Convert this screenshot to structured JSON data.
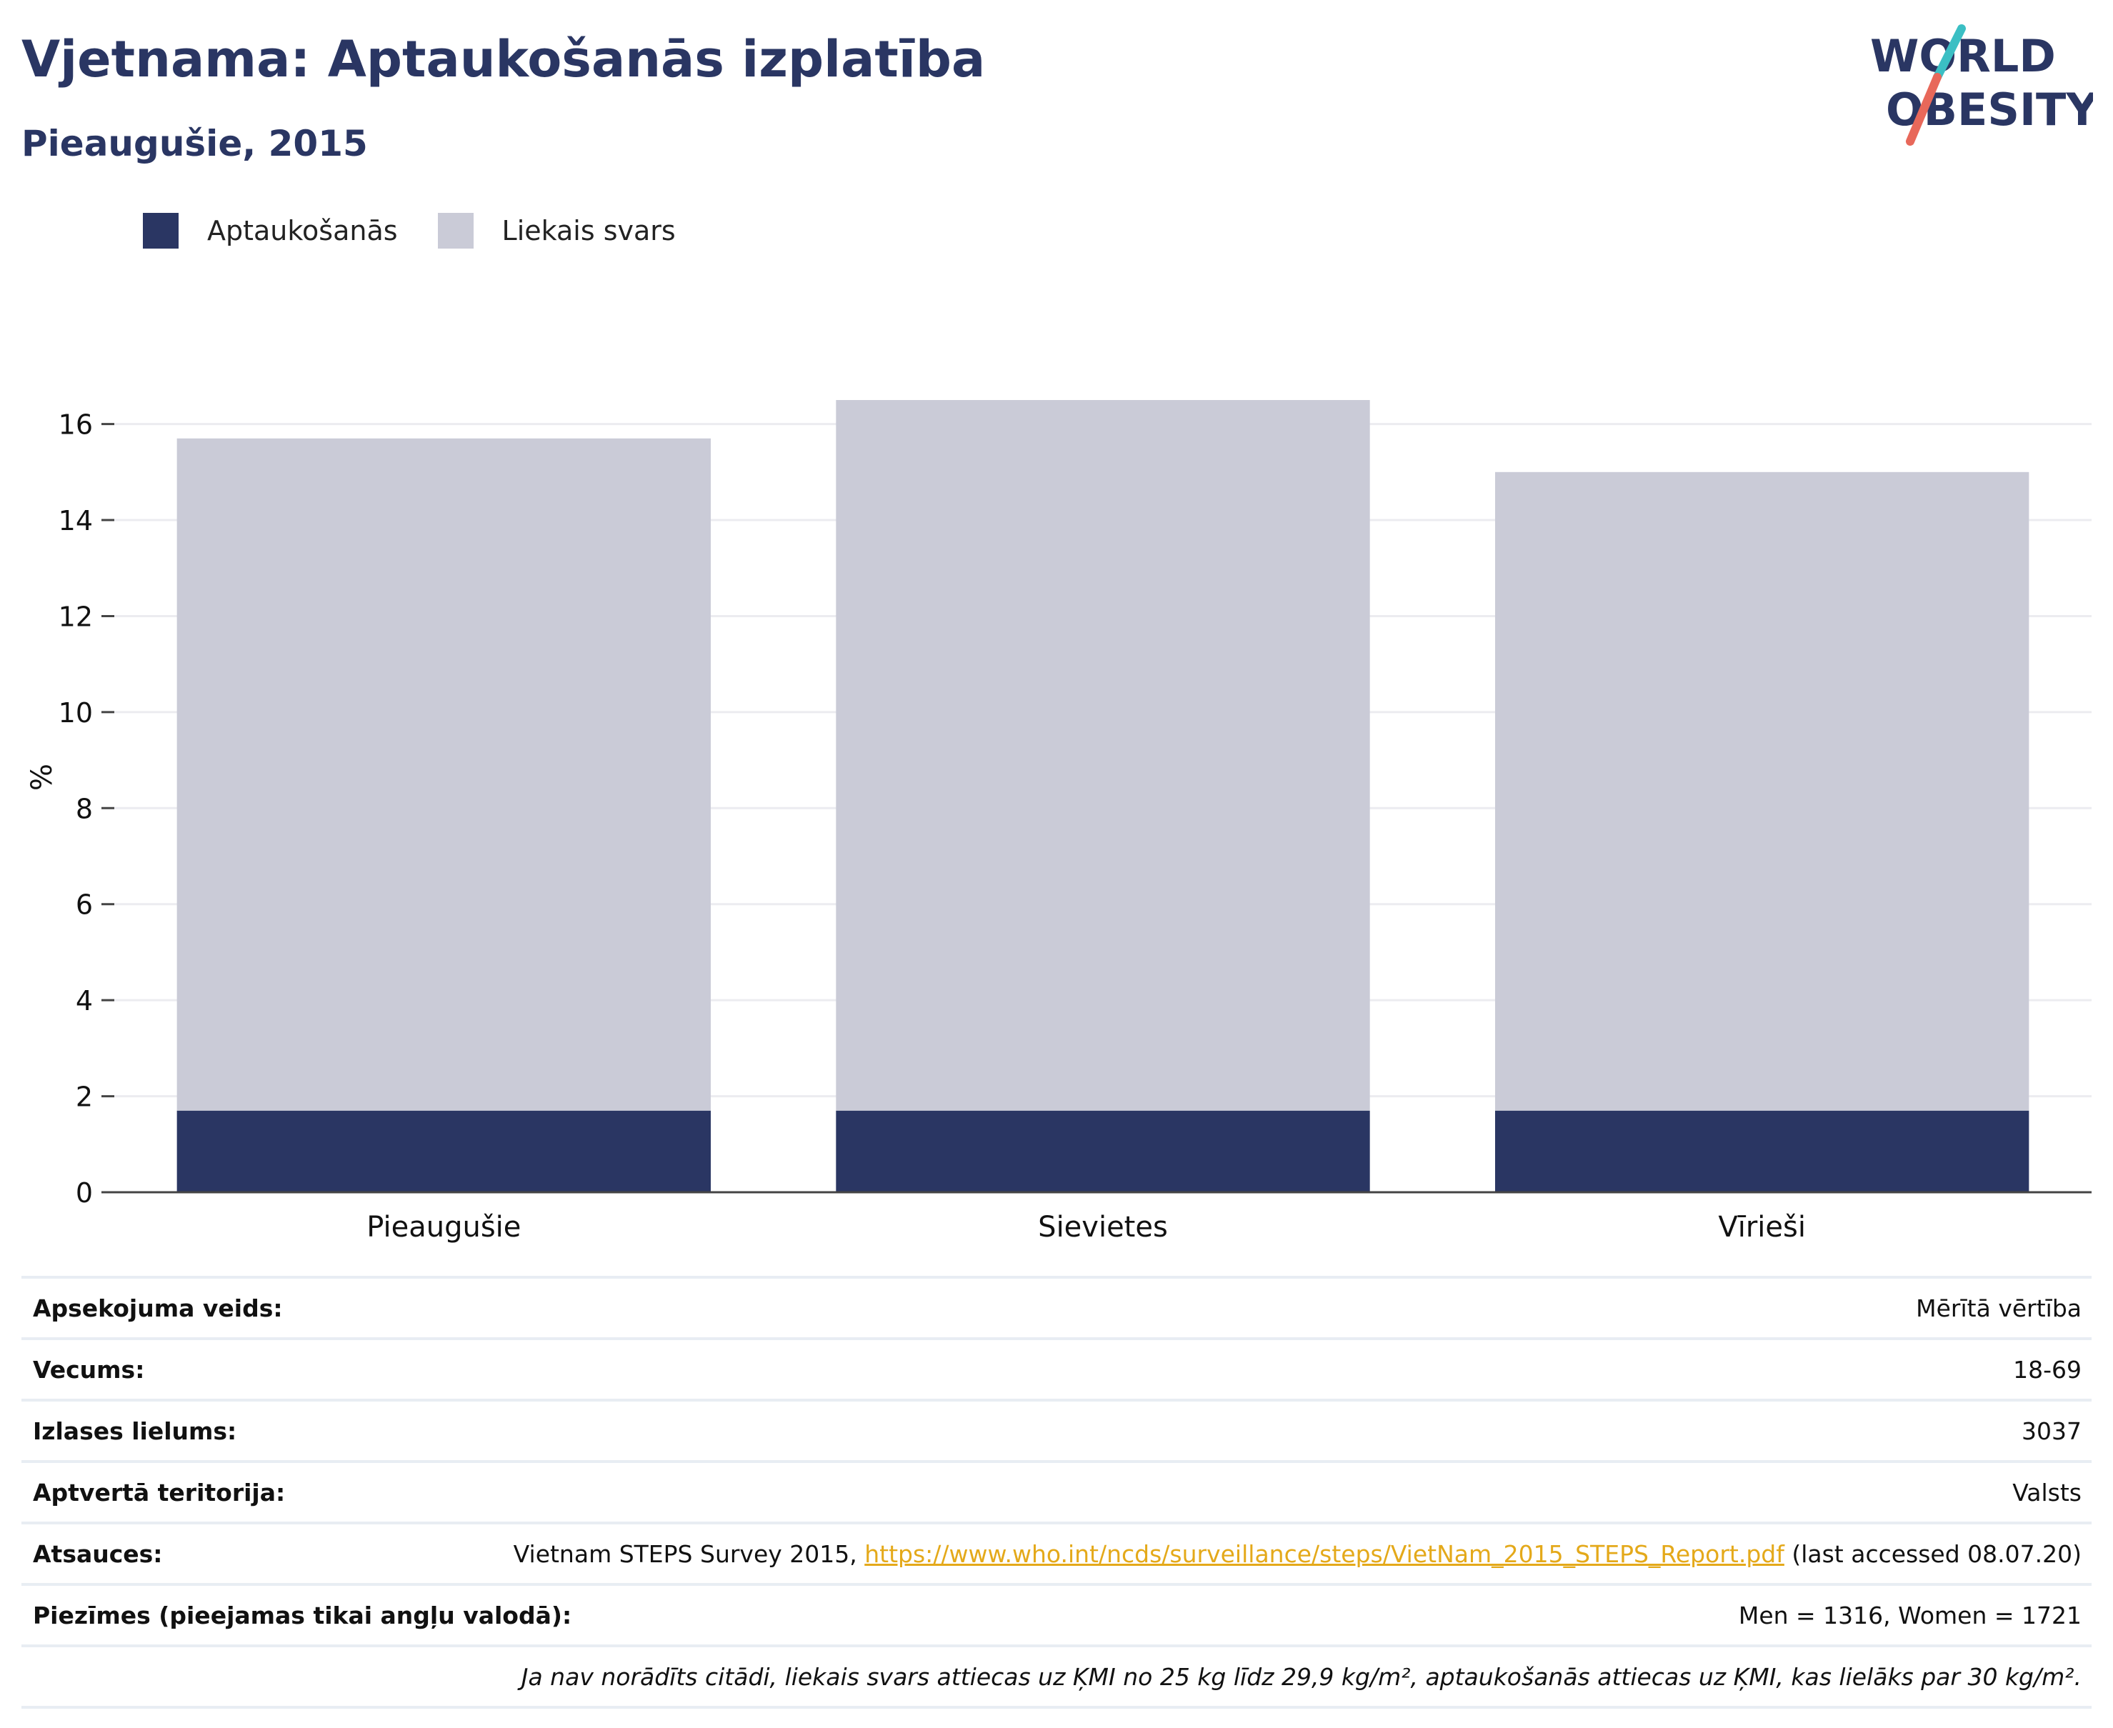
{
  "header": {
    "title": "Vjetnama: Aptaukošanās izplatība",
    "subtitle": "Pieaugušie, 2015",
    "logo_line1": "WORLD",
    "logo_line2": "OBESITY"
  },
  "colors": {
    "obesity": "#2a3663",
    "overweight": "#cacbd7",
    "text": "#2a3663",
    "accent_teal": "#3bbfc4",
    "accent_coral": "#e8685a",
    "link": "#e4a91a"
  },
  "chart_data": {
    "type": "bar",
    "stacked": true,
    "categories": [
      "Pieaugušie",
      "Sievietes",
      "Vīrieši"
    ],
    "series": [
      {
        "name": "Aptaukošanās",
        "values": [
          1.7,
          1.7,
          1.7
        ]
      },
      {
        "name": "Liekais svars",
        "values": [
          14.0,
          14.8,
          13.3
        ]
      }
    ],
    "ylabel": "%",
    "yticks": [
      0,
      2,
      4,
      6,
      8,
      10,
      12,
      14,
      16
    ],
    "ylim": [
      0,
      16.5
    ],
    "grid": true,
    "legend": "top-left"
  },
  "info": {
    "survey_type_label": "Apsekojuma veids:",
    "survey_type_value": "Mērītā vērtība",
    "age_label": "Vecums:",
    "age_value": "18-69",
    "sample_label": "Izlases lielums:",
    "sample_value": "3037",
    "coverage_label": "Aptvertā teritorija:",
    "coverage_value": "Valsts",
    "refs_label": "Atsauces:",
    "refs_prefix": "Vietnam STEPS Survey 2015, ",
    "refs_link": "https://www.who.int/ncds/surveillance/steps/VietNam_2015_STEPS_Report.pdf",
    "refs_suffix": " (last accessed 08.07.20)",
    "notes_label": "Piezīmes (pieejamas tikai angļu valodā):",
    "notes_value": "Men = 1316, Women = 1721",
    "footnote": "Ja nav norādīts citādi, liekais svars attiecas uz ĶMI no 25 kg līdz 29,9 kg/m², aptaukošanās attiecas uz ĶMI, kas lielāks par 30 kg/m²."
  }
}
